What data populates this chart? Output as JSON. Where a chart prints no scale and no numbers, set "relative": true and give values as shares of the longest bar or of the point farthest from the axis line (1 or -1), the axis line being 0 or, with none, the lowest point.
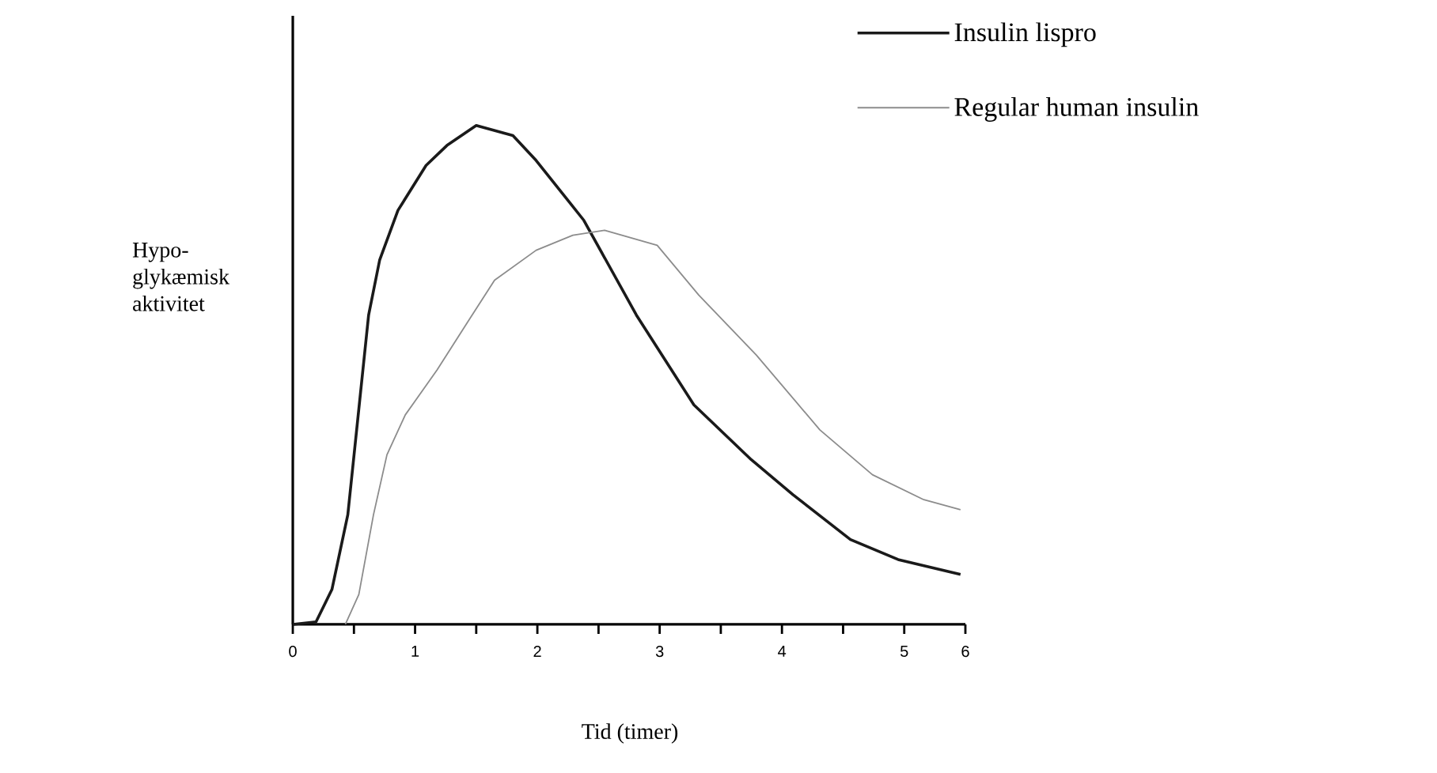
{
  "chart_data": {
    "type": "line",
    "relative": true,
    "xlabel": "Tid (timer)",
    "ylabel": "Hypo-glykæmisk aktivitet",
    "x": [
      0,
      0.19,
      0.32,
      0.45,
      0.62,
      0.71,
      0.86,
      1.09,
      1.26,
      1.5,
      1.8,
      1.99,
      2.38,
      2.81,
      3.28,
      3.75,
      4.09,
      4.56,
      4.95,
      5.46
    ],
    "xlim": [
      0,
      5.5
    ],
    "xticks": [
      0,
      {
        "value": 0.5,
        "label": null
      },
      1,
      {
        "value": 1.5,
        "label": null
      },
      2,
      {
        "value": 2.5,
        "label": null
      },
      3,
      {
        "value": 3.5,
        "label": null
      },
      4,
      {
        "value": 4.5,
        "label": null
      },
      5,
      {
        "value": 5.5,
        "label": "6"
      }
    ],
    "series": [
      {
        "name": "Insulin lispro",
        "color": "#1a1a1a",
        "values": [
          0,
          0.005,
          0.07,
          0.22,
          0.62,
          0.73,
          0.83,
          0.92,
          0.96,
          1.0,
          0.98,
          0.93,
          0.81,
          0.62,
          0.44,
          0.33,
          0.26,
          0.17,
          0.13,
          0.1
        ]
      },
      {
        "name": "Regular human insulin",
        "color": "#8c8c8c",
        "x": [
          0.43,
          0.54,
          0.66,
          0.77,
          0.92,
          1.18,
          1.44,
          1.65,
          1.99,
          2.29,
          2.55,
          2.98,
          3.32,
          3.79,
          4.31,
          4.74,
          5.16,
          5.46
        ],
        "values": [
          0,
          0.06,
          0.22,
          0.34,
          0.42,
          0.51,
          0.61,
          0.69,
          0.75,
          0.78,
          0.79,
          0.76,
          0.66,
          0.54,
          0.39,
          0.3,
          0.25,
          0.23
        ]
      }
    ],
    "legend": "top right",
    "marker": "none",
    "line_style": "solid",
    "grid": false
  }
}
